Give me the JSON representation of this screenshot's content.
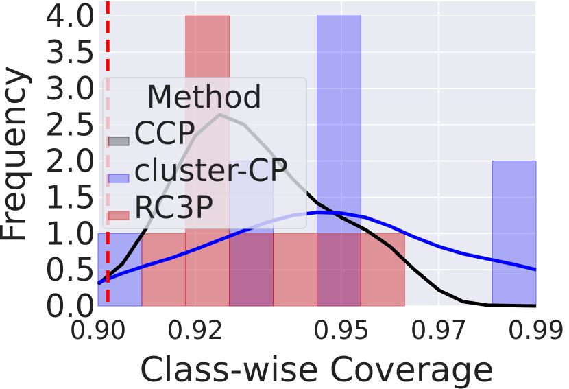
{
  "chart_data": {
    "type": "histogram",
    "xlabel": "Class-wise Coverage",
    "ylabel": "Frequency",
    "xlim": [
      0.9,
      0.99
    ],
    "ylim": [
      0,
      4.2
    ],
    "x_ticks": [
      0.9,
      0.92,
      0.95,
      0.97,
      0.99
    ],
    "x_tick_labels": [
      "0.90",
      "0.92",
      "0.95",
      "0.97",
      "0.99"
    ],
    "y_ticks": [
      0,
      0.5,
      1,
      1.5,
      2,
      2.5,
      3,
      3.5,
      4
    ],
    "y_tick_labels": [
      "0.0",
      "0.5",
      "1.0",
      "1.5",
      "2.0",
      "2.5",
      "3.0",
      "3.5",
      "4.0"
    ],
    "grid": true,
    "reference_line": {
      "x": 0.902,
      "style": "dashed",
      "color": "#ff0000"
    },
    "legend": {
      "title": "Method",
      "placement": "center-left",
      "entries": [
        "CCP",
        "cluster-CP",
        "RC3P"
      ]
    },
    "series": [
      {
        "name": "CCP",
        "color": "#000000",
        "bins": [],
        "kde": [
          [
            0.9,
            0.3
          ],
          [
            0.905,
            0.58
          ],
          [
            0.91,
            1.08
          ],
          [
            0.915,
            1.74
          ],
          [
            0.92,
            2.35
          ],
          [
            0.925,
            2.64
          ],
          [
            0.93,
            2.5
          ],
          [
            0.935,
            2.15
          ],
          [
            0.94,
            1.75
          ],
          [
            0.945,
            1.42
          ],
          [
            0.95,
            1.22
          ],
          [
            0.955,
            1.05
          ],
          [
            0.96,
            0.82
          ],
          [
            0.965,
            0.5
          ],
          [
            0.97,
            0.22
          ],
          [
            0.975,
            0.06
          ],
          [
            0.98,
            0.01
          ],
          [
            0.99,
            0.0
          ]
        ]
      },
      {
        "name": "cluster-CP",
        "color": "#0000ff",
        "bins": [
          [
            0.9,
            0.909,
            1
          ],
          [
            0.927,
            0.936,
            2
          ],
          [
            0.945,
            0.954,
            4
          ],
          [
            0.981,
            0.99,
            2
          ]
        ],
        "kde": [
          [
            0.9,
            0.32
          ],
          [
            0.905,
            0.45
          ],
          [
            0.91,
            0.56
          ],
          [
            0.915,
            0.66
          ],
          [
            0.92,
            0.78
          ],
          [
            0.925,
            0.91
          ],
          [
            0.93,
            1.04
          ],
          [
            0.935,
            1.16
          ],
          [
            0.94,
            1.25
          ],
          [
            0.945,
            1.29
          ],
          [
            0.95,
            1.28
          ],
          [
            0.955,
            1.22
          ],
          [
            0.96,
            1.1
          ],
          [
            0.965,
            0.95
          ],
          [
            0.97,
            0.82
          ],
          [
            0.975,
            0.72
          ],
          [
            0.98,
            0.65
          ],
          [
            0.985,
            0.58
          ],
          [
            0.99,
            0.5
          ]
        ]
      },
      {
        "name": "RC3P",
        "color": "#d0191b",
        "bins": [
          [
            0.909,
            0.918,
            1
          ],
          [
            0.918,
            0.927,
            4
          ],
          [
            0.927,
            0.936,
            1
          ],
          [
            0.936,
            0.945,
            1
          ],
          [
            0.945,
            0.954,
            1
          ],
          [
            0.954,
            0.963,
            1
          ]
        ],
        "kde": []
      }
    ]
  }
}
